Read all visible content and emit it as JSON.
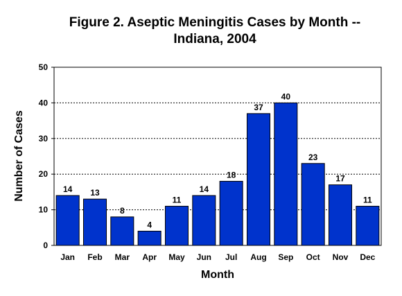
{
  "chart_data": {
    "type": "bar",
    "title": "Figure 2.  Aseptic Meningitis Cases by Month --",
    "subtitle": "Indiana, 2004",
    "xlabel": "Month",
    "ylabel": "Number of Cases",
    "categories": [
      "Jan",
      "Feb",
      "Mar",
      "Apr",
      "May",
      "Jun",
      "Jul",
      "Aug",
      "Sep",
      "Oct",
      "Nov",
      "Dec"
    ],
    "values": [
      14,
      13,
      8,
      4,
      11,
      14,
      18,
      37,
      40,
      23,
      17,
      11
    ],
    "ylim": [
      0,
      50
    ],
    "yticks": [
      0,
      10,
      20,
      30,
      40,
      50
    ],
    "grid": true,
    "bar_color": "#0033cc"
  }
}
